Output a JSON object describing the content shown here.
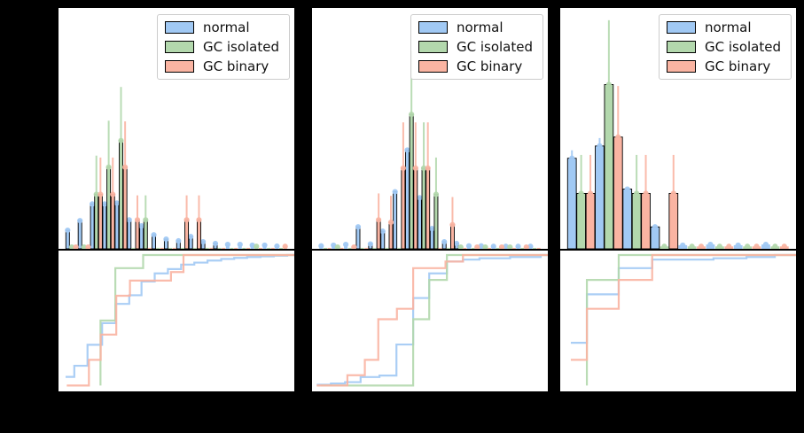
{
  "figure": {
    "background": "#000000",
    "axes_background": "#ffffff",
    "visible_text": [
      "normal",
      "GC isolated",
      "GC binary"
    ]
  },
  "colors": {
    "normal": "#a1c9f4",
    "gc_isolated": "#b3d8ad",
    "gc_binary": "#fab4a2",
    "bar_edge": "#000000",
    "legend_border": "#cccccc",
    "legend_text": "#111111"
  },
  "legend": {
    "labels": [
      "normal",
      "GC isolated",
      "GC binary"
    ]
  },
  "chart_data": [
    {
      "panel": 1,
      "type": "bar",
      "layout": {
        "grid": false,
        "legend_position": "upper right"
      },
      "hist": {
        "ylim": [
          0,
          1
        ],
        "units": "normalized_fraction_of_axis_height",
        "series": [
          {
            "key": "normal",
            "label": "normal",
            "heights": [
              0.077,
              0.117,
              0.186,
              0.186,
              0.19,
              0.12,
              0.095,
              0.058,
              0.04,
              0.033,
              0.051,
              0.029,
              0.022,
              0.018,
              0.018,
              0.015,
              0.015,
              0.011
            ],
            "errors": [
              0,
              0,
              0,
              0,
              0,
              0,
              0,
              0,
              0,
              0,
              0,
              0,
              0,
              0,
              0,
              0,
              0,
              0
            ]
          },
          {
            "key": "gc_isolated",
            "label": "GC isolated",
            "heights": [
              0.007,
              0.007,
              0.226,
              0.339,
              0.449,
              0.004,
              0.12,
              0.004,
              0.004,
              0.004,
              0.004,
              0.004,
              0.004,
              0.004,
              0.004,
              0.01,
              0.004,
              0.004
            ],
            "errors": [
              0,
              0,
              0.161,
              0.193,
              0.223,
              0,
              0.102,
              0,
              0,
              0,
              0,
              0,
              0,
              0,
              0,
              0,
              0,
              0
            ]
          },
          {
            "key": "gc_binary",
            "label": "GC binary",
            "heights": [
              0.007,
              0.007,
              0.226,
              0.226,
              0.339,
              0.12,
              0.004,
              0.004,
              0.004,
              0.12,
              0.12,
              0.004,
              0.004,
              0.004,
              0.004,
              0.004,
              0.004,
              0.01
            ],
            "errors": [
              0,
              0,
              0.153,
              0.153,
              0.19,
              0.102,
              0,
              0,
              0,
              0.102,
              0.102,
              0,
              0,
              0,
              0,
              0,
              0,
              0
            ]
          }
        ]
      },
      "cdf": {
        "type": "step",
        "ylim": [
          0,
          1
        ],
        "series": [
          {
            "key": "normal",
            "points": [
              [
                0.03,
                0.07
              ],
              [
                0.067,
                0.155
              ],
              [
                0.123,
                0.315
              ],
              [
                0.185,
                0.48
              ],
              [
                0.242,
                0.627
              ],
              [
                0.3,
                0.693
              ],
              [
                0.352,
                0.798
              ],
              [
                0.408,
                0.86
              ],
              [
                0.464,
                0.893
              ],
              [
                0.52,
                0.927
              ],
              [
                0.576,
                0.942
              ],
              [
                0.632,
                0.958
              ],
              [
                0.69,
                0.97
              ],
              [
                0.745,
                0.978
              ],
              [
                0.8,
                0.985
              ],
              [
                0.857,
                0.99
              ],
              [
                0.913,
                0.995
              ],
              [
                0.97,
                1.0
              ]
            ]
          },
          {
            "key": "gc_isolated",
            "points": [
              [
                0.178,
                0.004
              ],
              [
                0.178,
                0.5
              ],
              [
                0.241,
                0.9
              ],
              [
                0.359,
                1.0
              ]
            ]
          },
          {
            "key": "gc_binary",
            "points": [
              [
                0.035,
                0.004
              ],
              [
                0.129,
                0.2
              ],
              [
                0.179,
                0.393
              ],
              [
                0.245,
                0.689
              ],
              [
                0.303,
                0.805
              ],
              [
                0.477,
                0.87
              ],
              [
                0.53,
                1.0
              ]
            ]
          }
        ]
      }
    },
    {
      "panel": 2,
      "type": "bar",
      "layout": {
        "grid": false,
        "legend_position": "upper right"
      },
      "hist": {
        "ylim": [
          0,
          1
        ],
        "units": "normalized_fraction_of_axis_height",
        "series": [
          {
            "key": "normal",
            "label": "normal",
            "heights": [
              0.012,
              0.015,
              0.018,
              0.091,
              0.02,
              0.073,
              0.237,
              0.41,
              0.212,
              0.084,
              0.029,
              0.022,
              0.012,
              0.012,
              0.01,
              0.01,
              0.01,
              0.01
            ],
            "errors": [
              0,
              0,
              0,
              0,
              0,
              0,
              0,
              0,
              0,
              0,
              0,
              0,
              0,
              0,
              0,
              0,
              0,
              0
            ]
          },
          {
            "key": "gc_isolated",
            "label": "GC isolated",
            "heights": [
              0.004,
              0.007,
              0.004,
              0.004,
              0.004,
              0.004,
              0.004,
              0.558,
              0.335,
              0.226,
              0.004,
              0.007,
              0.004,
              0.007,
              0.004,
              0.007,
              0.004,
              0.004
            ],
            "errors": [
              0,
              0,
              0,
              0,
              0,
              0,
              0,
              0.263,
              0.19,
              0.153,
              0,
              0,
              0,
              0,
              0,
              0,
              0,
              0
            ]
          },
          {
            "key": "gc_binary",
            "label": "GC binary",
            "heights": [
              0.004,
              0.004,
              0.007,
              0.004,
              0.12,
              0.11,
              0.335,
              0.335,
              0.335,
              0.004,
              0.1,
              0.004,
              0.007,
              0.004,
              0.007,
              0.004,
              0.007,
              0.004
            ],
            "errors": [
              0,
              0,
              0,
              0,
              0.11,
              0.11,
              0.19,
              0.19,
              0.19,
              0,
              0.115,
              0,
              0,
              0,
              0,
              0,
              0,
              0
            ]
          }
        ]
      },
      "cdf": {
        "type": "step",
        "ylim": [
          0,
          1
        ],
        "series": [
          {
            "key": "normal",
            "points": [
              [
                0.02,
                0.01
              ],
              [
                0.08,
                0.02
              ],
              [
                0.14,
                0.03
              ],
              [
                0.206,
                0.069
              ],
              [
                0.286,
                0.08
              ],
              [
                0.358,
                0.317
              ],
              [
                0.429,
                0.672
              ],
              [
                0.497,
                0.86
              ],
              [
                0.572,
                0.95
              ],
              [
                0.64,
                0.965
              ],
              [
                0.71,
                0.975
              ],
              [
                0.84,
                0.985
              ],
              [
                0.97,
                1.0
              ]
            ]
          },
          {
            "key": "gc_isolated",
            "points": [
              [
                0.037,
                0.004
              ],
              [
                0.429,
                0.51
              ],
              [
                0.497,
                0.81
              ],
              [
                0.572,
                1.0
              ]
            ]
          },
          {
            "key": "gc_binary",
            "points": [
              [
                0.02,
                0.004
              ],
              [
                0.15,
                0.083
              ],
              [
                0.224,
                0.2
              ],
              [
                0.281,
                0.51
              ],
              [
                0.36,
                0.59
              ],
              [
                0.429,
                0.9
              ],
              [
                0.566,
                0.95
              ],
              [
                0.64,
                1.0
              ]
            ]
          }
        ]
      }
    },
    {
      "panel": 3,
      "type": "bar",
      "layout": {
        "grid": false,
        "legend_position": "upper right"
      },
      "hist": {
        "ylim": [
          0,
          1
        ],
        "units": "normalized_fraction_of_axis_height",
        "series": [
          {
            "key": "normal",
            "label": "normal",
            "heights": [
              0.376,
              0.427,
              0.248,
              0.091,
              0.015,
              0.018,
              0.015,
              0.018
            ],
            "errors": [
              0.033,
              0.033,
              0,
              0,
              0,
              0,
              0,
              0
            ]
          },
          {
            "key": "gc_isolated",
            "label": "GC isolated",
            "heights": [
              0.23,
              0.682,
              0.23,
              0.01,
              0.01,
              0.01,
              0.01,
              0.01
            ],
            "errors": [
              0.16,
              0.267,
              0.16,
              0,
              0,
              0,
              0,
              0
            ]
          },
          {
            "key": "gc_binary",
            "label": "GC binary",
            "heights": [
              0.23,
              0.464,
              0.23,
              0.23,
              0.01,
              0.01,
              0.01,
              0.01
            ],
            "errors": [
              0.16,
              0.212,
              0.16,
              0.16,
              0,
              0,
              0,
              0
            ]
          }
        ]
      },
      "cdf": {
        "type": "step",
        "ylim": [
          0,
          1
        ],
        "series": [
          {
            "key": "normal",
            "points": [
              [
                0.045,
                0.33
              ],
              [
                0.113,
                0.7
              ],
              [
                0.248,
                0.9
              ],
              [
                0.39,
                0.965
              ],
              [
                0.65,
                0.975
              ],
              [
                0.79,
                0.985
              ],
              [
                0.91,
                1.0
              ]
            ]
          },
          {
            "key": "gc_isolated",
            "points": [
              [
                0.113,
                0.004
              ],
              [
                0.113,
                0.81
              ],
              [
                0.248,
                1.0
              ]
            ]
          },
          {
            "key": "gc_binary",
            "points": [
              [
                0.045,
                0.2
              ],
              [
                0.113,
                0.59
              ],
              [
                0.248,
                0.81
              ],
              [
                0.39,
                1.0
              ]
            ]
          }
        ]
      }
    }
  ]
}
